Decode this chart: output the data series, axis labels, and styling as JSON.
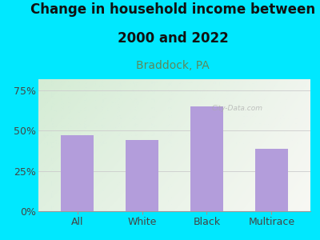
{
  "categories": [
    "All",
    "White",
    "Black",
    "Multirace"
  ],
  "values": [
    47,
    44,
    65,
    39
  ],
  "bar_color": "#b39ddb",
  "background_color": "#00e8ff",
  "plot_bg_top_left": "#d4ecd4",
  "plot_bg_bottom_right": "#f8f8f4",
  "title_line1": "Change in household income between",
  "title_line2": "2000 and 2022",
  "subtitle": "Braddock, PA",
  "title_fontsize": 12,
  "subtitle_fontsize": 10,
  "subtitle_color": "#5b8a5b",
  "tick_fontsize": 9,
  "yticks": [
    0,
    25,
    50,
    75
  ],
  "ylim": [
    0,
    82
  ],
  "watermark": "City-Data.com",
  "grid_color": "#cccccc",
  "bar_width": 0.5
}
